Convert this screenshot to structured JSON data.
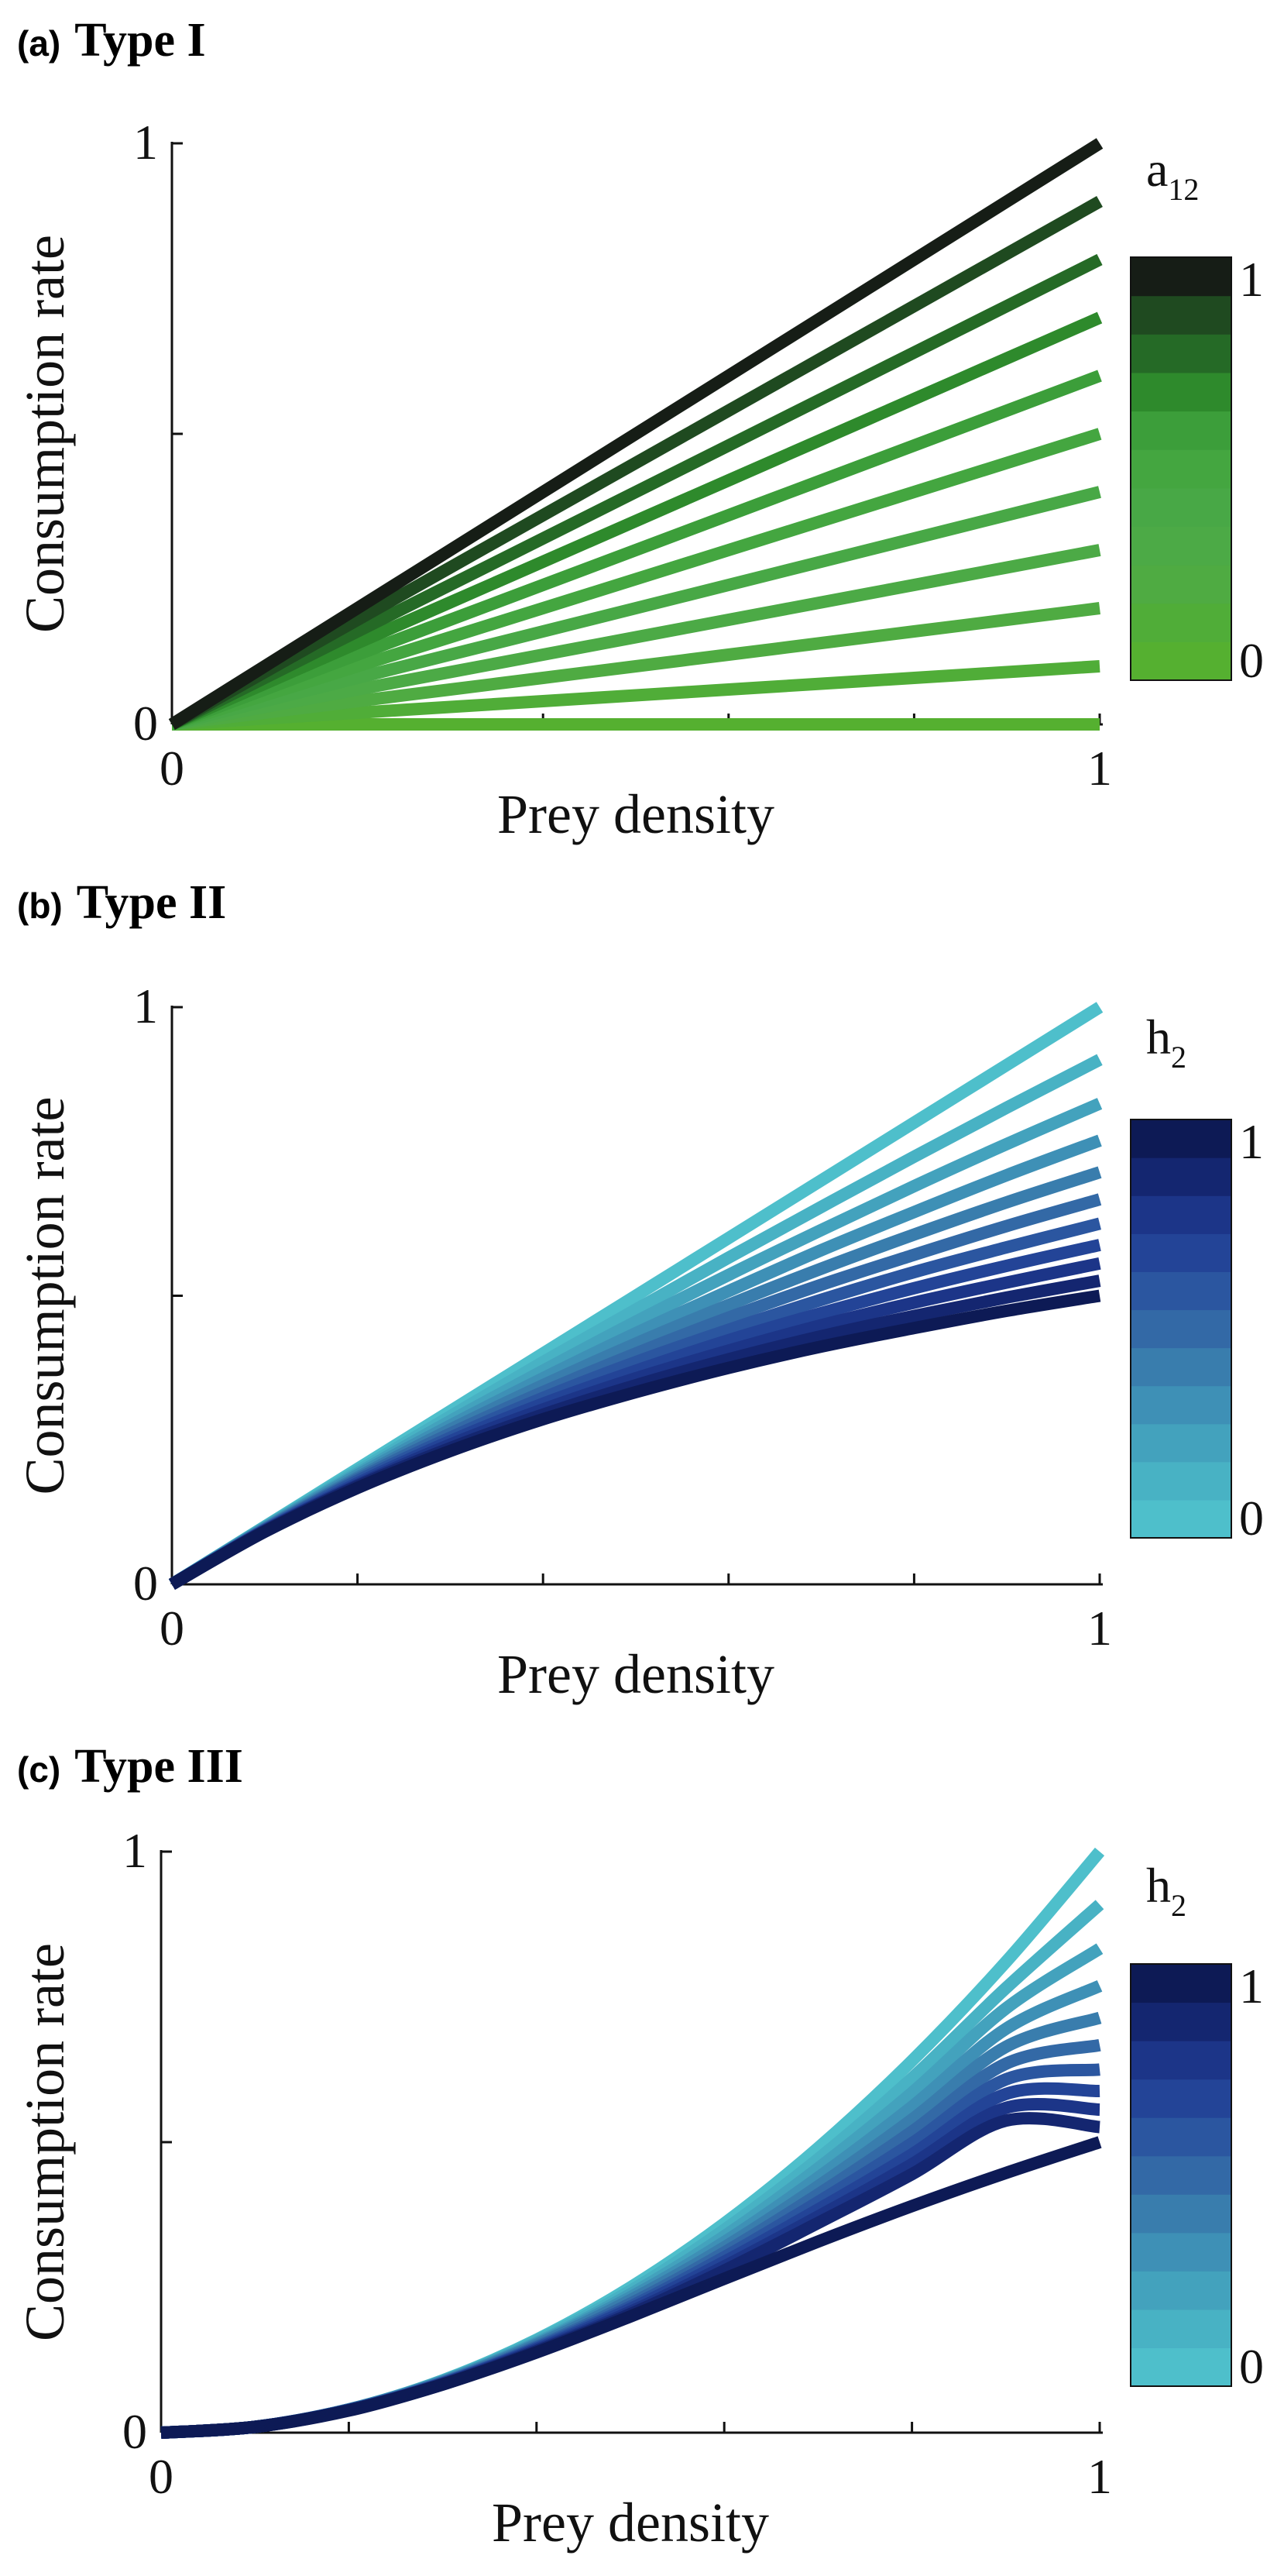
{
  "chart_data": [
    {
      "panel": "(a)",
      "title": "Type I",
      "type": "line",
      "xlabel": "Prey density",
      "ylabel": "Consumption rate",
      "xlim": [
        0,
        1
      ],
      "ylim": [
        0,
        1
      ],
      "xticks": [
        "0",
        "1"
      ],
      "yticks": [
        "0",
        "1"
      ],
      "x": [
        0,
        0.1,
        0.2,
        0.3,
        0.4,
        0.5,
        0.6,
        0.7,
        0.8,
        0.9,
        1.0
      ],
      "series": [
        {
          "param": 0.0,
          "color": "#55b030",
          "values": [
            0,
            0,
            0,
            0,
            0,
            0,
            0,
            0,
            0,
            0,
            0
          ]
        },
        {
          "param": 0.1,
          "color": "#50ad38",
          "values": [
            0,
            0.01,
            0.02,
            0.03,
            0.04,
            0.05,
            0.06,
            0.07,
            0.08,
            0.09,
            0.1
          ]
        },
        {
          "param": 0.2,
          "color": "#4fab42",
          "values": [
            0,
            0.02,
            0.04,
            0.06,
            0.08,
            0.1,
            0.12,
            0.14,
            0.16,
            0.18,
            0.2
          ]
        },
        {
          "param": 0.3,
          "color": "#4caa46",
          "values": [
            0,
            0.03,
            0.06,
            0.09,
            0.12,
            0.15,
            0.18,
            0.21,
            0.24,
            0.27,
            0.3
          ]
        },
        {
          "param": 0.4,
          "color": "#48a846",
          "values": [
            0,
            0.04,
            0.08,
            0.12,
            0.16,
            0.2,
            0.24,
            0.28,
            0.32,
            0.36,
            0.4
          ]
        },
        {
          "param": 0.5,
          "color": "#44a640",
          "values": [
            0,
            0.05,
            0.1,
            0.15,
            0.2,
            0.25,
            0.3,
            0.35,
            0.4,
            0.45,
            0.5
          ]
        },
        {
          "param": 0.6,
          "color": "#3c9e3a",
          "values": [
            0,
            0.06,
            0.12,
            0.18,
            0.24,
            0.3,
            0.36,
            0.42,
            0.48,
            0.54,
            0.6
          ]
        },
        {
          "param": 0.7,
          "color": "#2e8a2c",
          "values": [
            0,
            0.07,
            0.14,
            0.21,
            0.28,
            0.35,
            0.42,
            0.49,
            0.56,
            0.63,
            0.7
          ]
        },
        {
          "param": 0.8,
          "color": "#256a26",
          "values": [
            0,
            0.08,
            0.16,
            0.24,
            0.32,
            0.4,
            0.48,
            0.56,
            0.64,
            0.72,
            0.8
          ]
        },
        {
          "param": 0.9,
          "color": "#1f4a20",
          "values": [
            0,
            0.09,
            0.18,
            0.27,
            0.36,
            0.45,
            0.54,
            0.63,
            0.72,
            0.81,
            0.9
          ]
        },
        {
          "param": 1.0,
          "color": "#161d16",
          "values": [
            0,
            0.1,
            0.2,
            0.3,
            0.4,
            0.5,
            0.6,
            0.7,
            0.8,
            0.9,
            1.0
          ]
        }
      ],
      "colorbar": {
        "title": "a",
        "title_sub": "12",
        "min_label": "0",
        "max_label": "1",
        "colors_bottom_to_top": [
          "#55b030",
          "#50ad38",
          "#4fab42",
          "#4caa46",
          "#48a846",
          "#44a640",
          "#3c9e3a",
          "#2e8a2c",
          "#256a26",
          "#1f4a20",
          "#161d16"
        ]
      }
    },
    {
      "panel": "(b)",
      "title": "Type II",
      "type": "line",
      "xlabel": "Prey density",
      "ylabel": "Consumption rate",
      "xlim": [
        0,
        1
      ],
      "ylim": [
        0,
        1
      ],
      "xticks": [
        "0",
        "1"
      ],
      "yticks": [
        "0",
        "1"
      ],
      "x": [
        0,
        0.1,
        0.2,
        0.3,
        0.4,
        0.5,
        0.6,
        0.7,
        0.8,
        0.9,
        1.0
      ],
      "series": [
        {
          "param": 0.0,
          "color": "#4ebfcb",
          "values": [
            0,
            0.1,
            0.2,
            0.3,
            0.4,
            0.5,
            0.6,
            0.7,
            0.8,
            0.9,
            1.0
          ]
        },
        {
          "param": 0.1,
          "color": "#48b2c4",
          "values": [
            0,
            0.099,
            0.196,
            0.291,
            0.385,
            0.476,
            0.566,
            0.654,
            0.741,
            0.826,
            0.909
          ]
        },
        {
          "param": 0.2,
          "color": "#43a2bd",
          "values": [
            0,
            0.098,
            0.192,
            0.283,
            0.37,
            0.455,
            0.536,
            0.614,
            0.69,
            0.763,
            0.833
          ]
        },
        {
          "param": 0.3,
          "color": "#3e90b6",
          "values": [
            0,
            0.097,
            0.189,
            0.275,
            0.357,
            0.435,
            0.508,
            0.579,
            0.645,
            0.709,
            0.769
          ]
        },
        {
          "param": 0.4,
          "color": "#397dad",
          "values": [
            0,
            0.096,
            0.185,
            0.268,
            0.345,
            0.417,
            0.484,
            0.547,
            0.606,
            0.662,
            0.714
          ]
        },
        {
          "param": 0.5,
          "color": "#3369a6",
          "values": [
            0,
            0.095,
            0.182,
            0.261,
            0.333,
            0.4,
            0.462,
            0.519,
            0.571,
            0.621,
            0.667
          ]
        },
        {
          "param": 0.6,
          "color": "#2b56a0",
          "values": [
            0,
            0.094,
            0.179,
            0.254,
            0.323,
            0.385,
            0.441,
            0.493,
            0.541,
            0.584,
            0.625
          ]
        },
        {
          "param": 0.7,
          "color": "#234497",
          "values": [
            0,
            0.093,
            0.175,
            0.248,
            0.313,
            0.37,
            0.423,
            0.47,
            0.513,
            0.552,
            0.588
          ]
        },
        {
          "param": 0.8,
          "color": "#1c3588",
          "values": [
            0,
            0.093,
            0.172,
            0.242,
            0.303,
            0.357,
            0.405,
            0.449,
            0.488,
            0.523,
            0.556
          ]
        },
        {
          "param": 0.9,
          "color": "#142670",
          "values": [
            0,
            0.092,
            0.17,
            0.236,
            0.294,
            0.345,
            0.39,
            0.43,
            0.465,
            0.497,
            0.526
          ]
        },
        {
          "param": 1.0,
          "color": "#0d1a55",
          "values": [
            0,
            0.091,
            0.167,
            0.231,
            0.286,
            0.333,
            0.375,
            0.412,
            0.444,
            0.474,
            0.5
          ]
        }
      ],
      "colorbar": {
        "title": "h",
        "title_sub": "2",
        "min_label": "0",
        "max_label": "1",
        "colors_bottom_to_top": [
          "#4ebfcb",
          "#48b2c4",
          "#43a2bd",
          "#3e90b6",
          "#397dad",
          "#3369a6",
          "#2b56a0",
          "#234497",
          "#1c3588",
          "#142670",
          "#0d1a55"
        ]
      }
    },
    {
      "panel": "(c)",
      "title": "Type III",
      "type": "line",
      "xlabel": "Prey density",
      "ylabel": "Consumption rate",
      "xlim": [
        0,
        1
      ],
      "ylim": [
        0,
        1
      ],
      "xticks": [
        "0",
        "1"
      ],
      "yticks": [
        "0",
        "1"
      ],
      "x": [
        0,
        0.1,
        0.2,
        0.3,
        0.4,
        0.5,
        0.6,
        0.7,
        0.8,
        0.9,
        1.0
      ],
      "series": [
        {
          "param": 0.0,
          "color": "#4ebfcb",
          "values": [
            0,
            0.01,
            0.04,
            0.09,
            0.16,
            0.25,
            0.36,
            0.49,
            0.64,
            0.81,
            1.0
          ]
        },
        {
          "param": 0.1,
          "color": "#48b2c4",
          "values": [
            0,
            0.01,
            0.04,
            0.089,
            0.158,
            0.244,
            0.349,
            0.471,
            0.61,
            0.765,
            0.909
          ]
        },
        {
          "param": 0.2,
          "color": "#43a2bd",
          "values": [
            0,
            0.01,
            0.04,
            0.089,
            0.155,
            0.238,
            0.338,
            0.455,
            0.585,
            0.73,
            0.833
          ]
        },
        {
          "param": 0.3,
          "color": "#3e90b6",
          "values": [
            0,
            0.01,
            0.04,
            0.088,
            0.153,
            0.233,
            0.328,
            0.439,
            0.561,
            0.695,
            0.769
          ]
        },
        {
          "param": 0.4,
          "color": "#397dad",
          "values": [
            0,
            0.01,
            0.04,
            0.087,
            0.151,
            0.228,
            0.319,
            0.424,
            0.539,
            0.664,
            0.714
          ]
        },
        {
          "param": 0.5,
          "color": "#3369a6",
          "values": [
            0,
            0.01,
            0.039,
            0.086,
            0.148,
            0.222,
            0.31,
            0.41,
            0.518,
            0.635,
            0.667
          ]
        },
        {
          "param": 0.6,
          "color": "#2b56a0",
          "values": [
            0,
            0.01,
            0.039,
            0.085,
            0.146,
            0.217,
            0.302,
            0.397,
            0.498,
            0.608,
            0.625
          ]
        },
        {
          "param": 0.7,
          "color": "#234497",
          "values": [
            0,
            0.01,
            0.039,
            0.085,
            0.144,
            0.213,
            0.294,
            0.384,
            0.479,
            0.583,
            0.588
          ]
        },
        {
          "param": 0.8,
          "color": "#1c3588",
          "values": [
            0,
            0.01,
            0.039,
            0.084,
            0.142,
            0.208,
            0.286,
            0.372,
            0.462,
            0.559,
            0.556
          ]
        },
        {
          "param": 0.9,
          "color": "#142670",
          "values": [
            0,
            0.01,
            0.039,
            0.083,
            0.14,
            0.204,
            0.279,
            0.361,
            0.445,
            0.537,
            0.526
          ]
        },
        {
          "param": 1.0,
          "color": "#0d1a55",
          "values": [
            0,
            0.01,
            0.038,
            0.083,
            0.138,
            0.2,
            0.265,
            0.329,
            0.39,
            0.447,
            0.5
          ]
        }
      ],
      "colorbar": {
        "title": "h",
        "title_sub": "2",
        "min_label": "0",
        "max_label": "1",
        "colors_bottom_to_top": [
          "#4ebfcb",
          "#48b2c4",
          "#43a2bd",
          "#3e90b6",
          "#397dad",
          "#3369a6",
          "#2b56a0",
          "#234497",
          "#1c3588",
          "#142670",
          "#0d1a55"
        ]
      }
    }
  ]
}
